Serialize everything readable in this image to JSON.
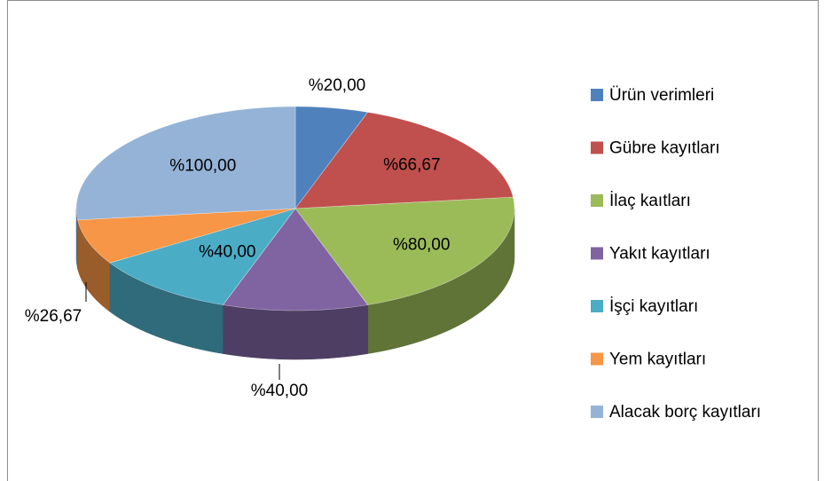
{
  "chart_data": {
    "type": "pie",
    "three_d": true,
    "categories": [
      "Ürün verimleri",
      "Gübre kayıtları",
      "İlaç kaıtları",
      "Yakıt kayıtları",
      "İşçi kayıtları",
      "Yem kayıtları",
      "Alacak borç kayıtları"
    ],
    "values": [
      20,
      66.67,
      80,
      40,
      40,
      26.67,
      100
    ],
    "value_labels": [
      "%20,00",
      "%66,67",
      "%80,00",
      "%40,00",
      "%40,00",
      "%26,67",
      "%100,00"
    ],
    "colors": [
      "#4f81bd",
      "#c0504d",
      "#9bbb59",
      "#8064a2",
      "#4bacc6",
      "#f79646",
      "#95b3d7"
    ],
    "legend": "right"
  }
}
